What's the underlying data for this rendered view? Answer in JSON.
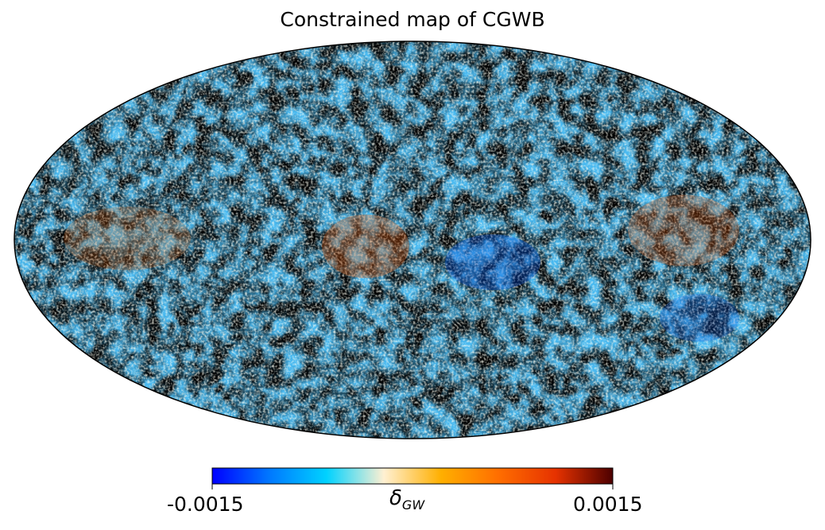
{
  "title": "Constrained map of CGWB",
  "map": {
    "projection": "mollweide",
    "field": "delta_GW"
  },
  "colorbar": {
    "min_label": "-0.0015",
    "max_label": "0.0015",
    "label_main": "δ",
    "label_sub": "GW",
    "vmin": -0.0015,
    "vmax": 0.0015,
    "colors": [
      "#0000ff",
      "#0078ff",
      "#00d2ff",
      "#fff0d2",
      "#ffaf00",
      "#ff6e00",
      "#e63200",
      "#4d0000"
    ]
  }
}
